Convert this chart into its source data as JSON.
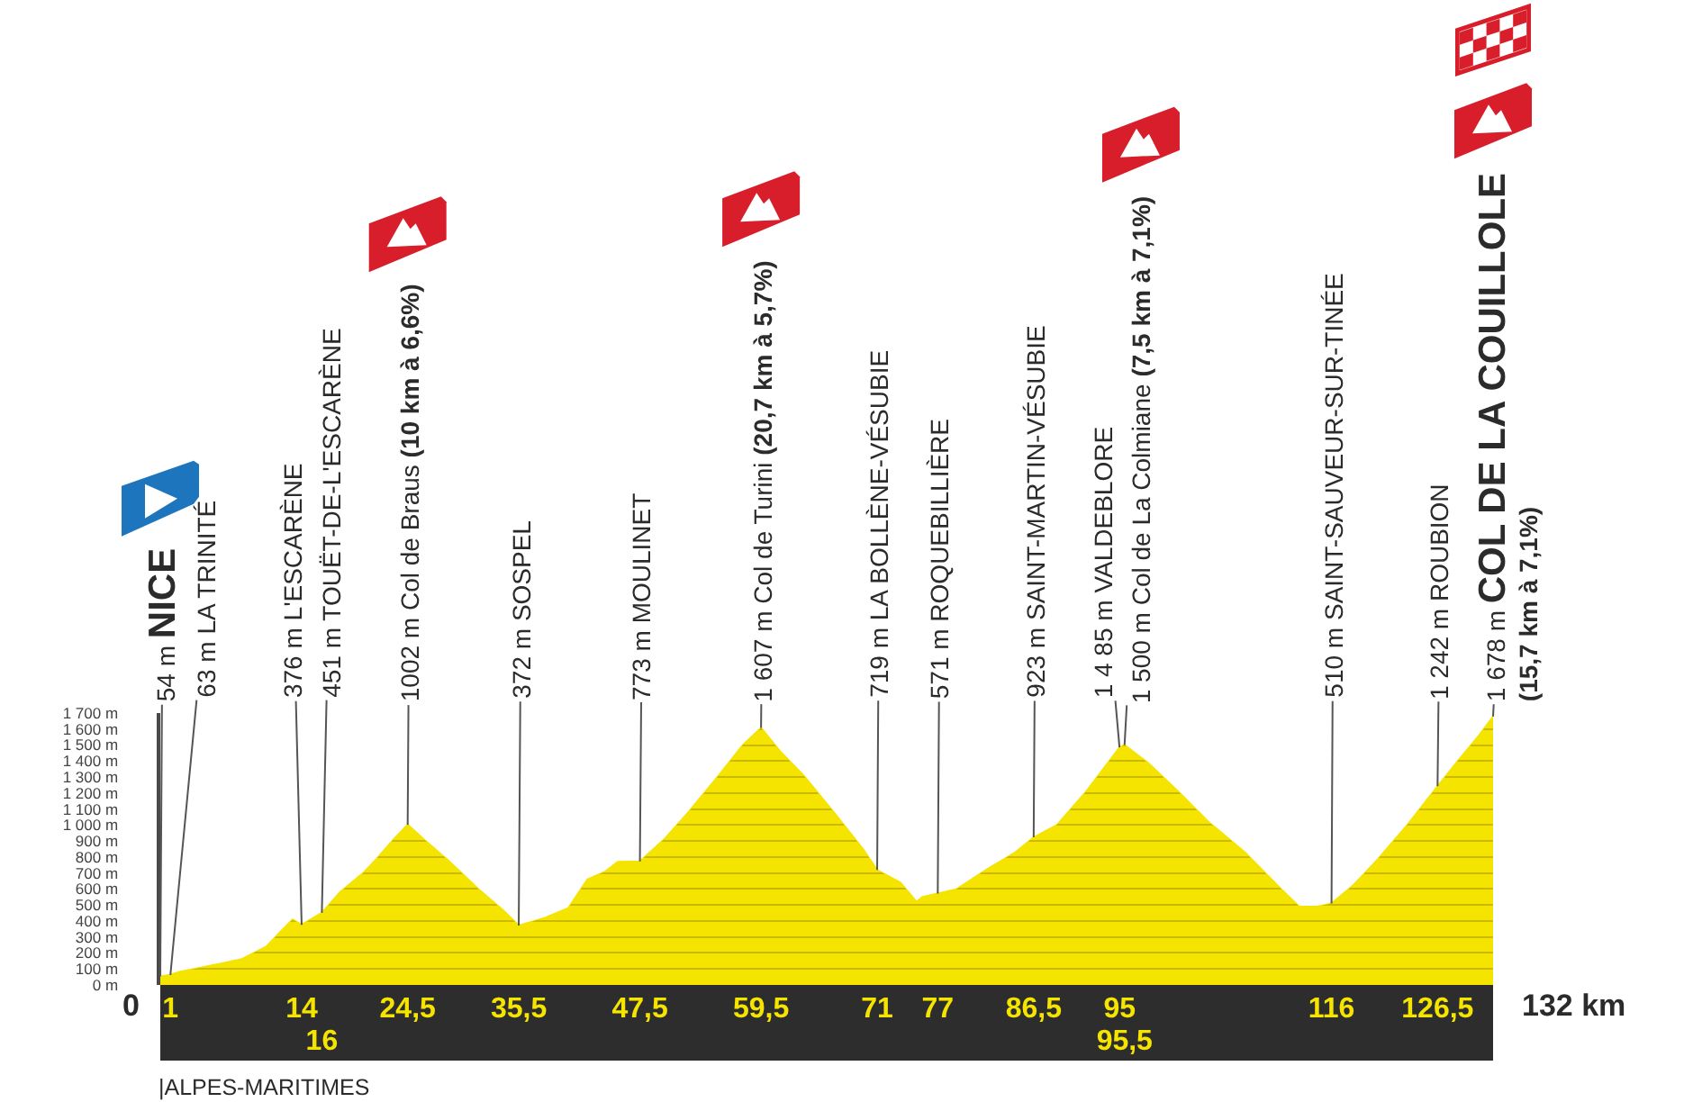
{
  "chart_data": {
    "type": "area",
    "x": [
      0,
      1,
      1.8,
      4.9,
      8,
      10.5,
      11.7,
      13.1,
      14,
      16,
      17.8,
      20.1,
      21.3,
      23.1,
      24.5,
      26.1,
      28.5,
      31.5,
      33.9,
      35.5,
      38.1,
      40.4,
      42.3,
      44.1,
      45.3,
      47.5,
      49.9,
      52.3,
      55.3,
      57.7,
      59.5,
      61.4,
      63.7,
      66.7,
      69.6,
      71,
      73.3,
      74.9,
      75.5,
      77,
      78.9,
      81.8,
      84.7,
      86.5,
      88.8,
      91.7,
      95,
      95.5,
      97.8,
      100.8,
      103.8,
      107.4,
      111,
      112.8,
      114.6,
      116,
      118.1,
      120.5,
      123.5,
      126.5,
      128.5,
      130.6,
      132
    ],
    "series": [
      {
        "color": "#f5e400",
        "values": [
          54,
          63,
          80,
          120,
          160,
          240,
          320,
          410,
          376,
          451,
          580,
          700,
          780,
          910,
          1002,
          910,
          780,
          600,
          470,
          372,
          420,
          480,
          660,
          710,
          770,
          773,
          910,
          1080,
          1310,
          1500,
          1607,
          1460,
          1310,
          1080,
          850,
          719,
          640,
          520,
          550,
          571,
          600,
          720,
          830,
          923,
          1000,
          1210,
          1485,
          1500,
          1390,
          1210,
          1020,
          830,
          600,
          490,
          490,
          510,
          620,
          780,
          1000,
          1242,
          1400,
          1560,
          1678
        ]
      }
    ],
    "xlim": [
      0,
      132
    ],
    "xticks": [
      1,
      14,
      {
        "value": 24.5,
        "label": "24,5"
      },
      {
        "value": 35.5,
        "label": "35,5"
      },
      {
        "value": 47.5,
        "label": "47,5"
      },
      {
        "value": 59.5,
        "label": "59,5"
      },
      71,
      77,
      {
        "value": 86.5,
        "label": "86,5"
      },
      95,
      116,
      {
        "value": 126.5,
        "label": "126,5"
      }
    ],
    "x2lim": [
      0,
      132
    ],
    "x2ticks": [
      16,
      {
        "value": 95.5,
        "label": "95,5"
      }
    ],
    "ylim": [
      0,
      1700
    ],
    "yticks": [
      {
        "value": 0,
        "label": "0 m"
      },
      {
        "value": 100,
        "label": "100 m"
      },
      {
        "value": 200,
        "label": "200 m"
      },
      {
        "value": 300,
        "label": "300 m"
      },
      {
        "value": 400,
        "label": "400 m"
      },
      {
        "value": 500,
        "label": "500 m"
      },
      {
        "value": 600,
        "label": "600 m"
      },
      {
        "value": 700,
        "label": "700 m"
      },
      {
        "value": 800,
        "label": "800 m"
      },
      {
        "value": 900,
        "label": "900 m"
      },
      {
        "value": 1000,
        "label": "1 000 m"
      },
      {
        "value": 1100,
        "label": "1 100 m"
      },
      {
        "value": 1200,
        "label": "1 200 m"
      },
      {
        "value": 1300,
        "label": "1 300 m"
      },
      {
        "value": 1400,
        "label": "1 400 m"
      },
      {
        "value": 1500,
        "label": "1 500 m"
      },
      {
        "value": 1600,
        "label": "1 600 m"
      },
      {
        "value": 1700,
        "label": "1 700 m"
      }
    ],
    "grid": "y",
    "annotations": [
      {
        "text": "54 m NICE",
        "x": 0,
        "y": 54
      },
      {
        "text": "63 m LA TRINITÉ",
        "x": 1,
        "y": 63
      },
      {
        "text": "376 m L'ESCARÈNE",
        "x": 14,
        "y": 376
      },
      {
        "text": "451 m TOUËT-DE-L'ESCARÈNE",
        "x": 16,
        "y": 451
      },
      {
        "text": "1002 m Col de Braus (10 km à 6,6%)",
        "x": 24.5,
        "y": 1002
      },
      {
        "text": "372 m SOSPEL",
        "x": 35.5,
        "y": 372
      },
      {
        "text": "773 m MOULINET",
        "x": 47.5,
        "y": 773
      },
      {
        "text": "1 607 m Col de Turini (20,7 km à 5,7%)",
        "x": 59.5,
        "y": 1607
      },
      {
        "text": "719 m LA BOLLÈNE-VÉSUBIE",
        "x": 71,
        "y": 719
      },
      {
        "text": "571 m ROQUEBILLIÈRE",
        "x": 77,
        "y": 571
      },
      {
        "text": "923 m SAINT-MARTIN-VÉSUBIE",
        "x": 86.5,
        "y": 923
      },
      {
        "text": "1 4 85 m VALDEBLORE",
        "x": 95,
        "y": 1485
      },
      {
        "text": "1 500 m Col de La Colmiane (7,5 km à 7,1%)",
        "x": 95.5,
        "y": 1500
      },
      {
        "text": "510 m SAINT-SAUVEUR-SUR-TINÉE",
        "x": 116,
        "y": 510
      },
      {
        "text": "1 242 m ROUBION",
        "x": 126.5,
        "y": 1242
      },
      {
        "text": "1 678 m COL DE LA COUILLOLE (15,7 km à 7,1%)",
        "x": 132,
        "y": 1678
      },
      "0",
      "132 km",
      "|ALPES-MARITIMES"
    ]
  }
}
